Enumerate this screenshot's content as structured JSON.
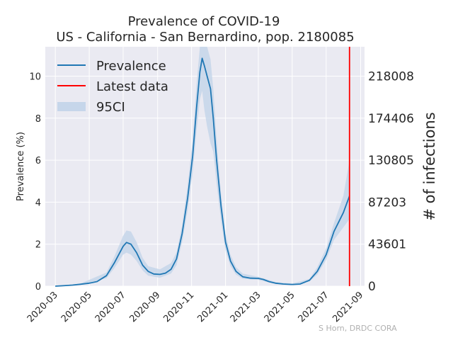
{
  "chart_data": {
    "type": "line",
    "title": "Prevalence of COVID-19",
    "subtitle": "US - California - San Bernardino, pop. 2180085",
    "ylabel": "Prevalence (%)",
    "ylabel_right": "# of infections",
    "ylim": [
      0,
      11.4
    ],
    "xlim": [
      "2020-02-12",
      "2021-09-08"
    ],
    "x_ticks": [
      "2020-03",
      "2020-05",
      "2020-07",
      "2020-09",
      "2020-11",
      "2021-01",
      "2021-03",
      "2021-05",
      "2021-07",
      "2021-09"
    ],
    "y_ticks": [
      0,
      2,
      4,
      6,
      8,
      10
    ],
    "right_ticks": [
      {
        "value": 0,
        "label": "0"
      },
      {
        "value": 2,
        "label": "43601"
      },
      {
        "value": 4,
        "label": "87203"
      },
      {
        "value": 6,
        "label": "130805"
      },
      {
        "value": 8,
        "label": "174406"
      },
      {
        "value": 10,
        "label": "218008"
      }
    ],
    "grid": true,
    "legend": "top-left",
    "legend_entries": [
      {
        "label": "Prevalence",
        "kind": "line",
        "color": "#1f77b4"
      },
      {
        "label": "Latest data",
        "kind": "line",
        "color": "#ff0000"
      },
      {
        "label": "95CI",
        "kind": "patch",
        "color": "#c6d6ea"
      }
    ],
    "latest_data_date": "2021-08-12",
    "series": [
      {
        "name": "Prevalence",
        "color": "#1f77b4",
        "points": [
          [
            "2020-03-01",
            0.0
          ],
          [
            "2020-03-15",
            0.02
          ],
          [
            "2020-04-01",
            0.05
          ],
          [
            "2020-04-15",
            0.09
          ],
          [
            "2020-05-01",
            0.14
          ],
          [
            "2020-05-15",
            0.22
          ],
          [
            "2020-06-01",
            0.5
          ],
          [
            "2020-06-15",
            1.1
          ],
          [
            "2020-07-01",
            1.9
          ],
          [
            "2020-07-07",
            2.08
          ],
          [
            "2020-07-15",
            2.0
          ],
          [
            "2020-07-25",
            1.6
          ],
          [
            "2020-08-05",
            1.0
          ],
          [
            "2020-08-15",
            0.7
          ],
          [
            "2020-08-25",
            0.58
          ],
          [
            "2020-09-05",
            0.56
          ],
          [
            "2020-09-15",
            0.62
          ],
          [
            "2020-09-25",
            0.8
          ],
          [
            "2020-10-05",
            1.3
          ],
          [
            "2020-10-15",
            2.5
          ],
          [
            "2020-10-25",
            4.2
          ],
          [
            "2020-11-03",
            6.2
          ],
          [
            "2020-11-10",
            8.5
          ],
          [
            "2020-11-16",
            10.2
          ],
          [
            "2020-11-20",
            10.85
          ],
          [
            "2020-11-24",
            10.5
          ],
          [
            "2020-11-29",
            10.0
          ],
          [
            "2020-12-05",
            9.4
          ],
          [
            "2020-12-10",
            8.0
          ],
          [
            "2020-12-16",
            6.0
          ],
          [
            "2020-12-24",
            3.8
          ],
          [
            "2021-01-01",
            2.1
          ],
          [
            "2021-01-10",
            1.2
          ],
          [
            "2021-01-20",
            0.7
          ],
          [
            "2021-02-01",
            0.45
          ],
          [
            "2021-02-15",
            0.38
          ],
          [
            "2021-03-01",
            0.37
          ],
          [
            "2021-03-10",
            0.32
          ],
          [
            "2021-03-20",
            0.22
          ],
          [
            "2021-04-01",
            0.14
          ],
          [
            "2021-04-15",
            0.1
          ],
          [
            "2021-05-01",
            0.08
          ],
          [
            "2021-05-15",
            0.1
          ],
          [
            "2021-06-01",
            0.28
          ],
          [
            "2021-06-15",
            0.7
          ],
          [
            "2021-07-01",
            1.5
          ],
          [
            "2021-07-15",
            2.6
          ],
          [
            "2021-08-01",
            3.5
          ],
          [
            "2021-08-12",
            4.3
          ]
        ]
      }
    ],
    "ci_band": {
      "name": "95CI",
      "color": "#c6d6ea",
      "x": [
        "2020-03-01",
        "2020-04-15",
        "2020-06-01",
        "2020-06-15",
        "2020-07-01",
        "2020-07-07",
        "2020-07-15",
        "2020-07-25",
        "2020-08-05",
        "2020-08-15",
        "2020-09-05",
        "2020-09-25",
        "2020-10-05",
        "2020-10-15",
        "2020-10-25",
        "2020-11-03",
        "2020-11-10",
        "2020-11-16",
        "2020-11-20",
        "2020-11-24",
        "2020-11-29",
        "2020-12-05",
        "2020-12-10",
        "2020-12-16",
        "2020-12-24",
        "2021-01-01",
        "2021-01-10",
        "2021-01-20",
        "2021-02-01",
        "2021-03-01",
        "2021-04-01",
        "2021-05-01",
        "2021-06-01",
        "2021-06-15",
        "2021-07-01",
        "2021-07-15",
        "2021-08-01",
        "2021-08-12"
      ],
      "upper": [
        0.0,
        0.12,
        0.65,
        1.4,
        2.4,
        2.65,
        2.6,
        2.1,
        1.35,
        0.95,
        0.8,
        1.1,
        1.6,
        2.9,
        4.8,
        7.0,
        9.6,
        11.4,
        11.4,
        11.4,
        11.4,
        10.8,
        9.4,
        7.0,
        4.4,
        2.5,
        1.5,
        0.9,
        0.6,
        0.45,
        0.2,
        0.12,
        0.35,
        0.9,
        1.8,
        3.0,
        4.3,
        6.0
      ],
      "lower": [
        0.0,
        0.06,
        0.38,
        0.85,
        1.5,
        1.6,
        1.5,
        1.2,
        0.75,
        0.5,
        0.4,
        0.6,
        1.0,
        2.1,
        3.6,
        5.4,
        7.4,
        8.9,
        9.3,
        8.4,
        7.6,
        6.8,
        6.4,
        4.9,
        3.1,
        1.7,
        0.95,
        0.55,
        0.35,
        0.3,
        0.1,
        0.05,
        0.22,
        0.55,
        1.25,
        2.2,
        2.8,
        3.2
      ]
    },
    "credit": "S Horn, DRDC CORA"
  }
}
